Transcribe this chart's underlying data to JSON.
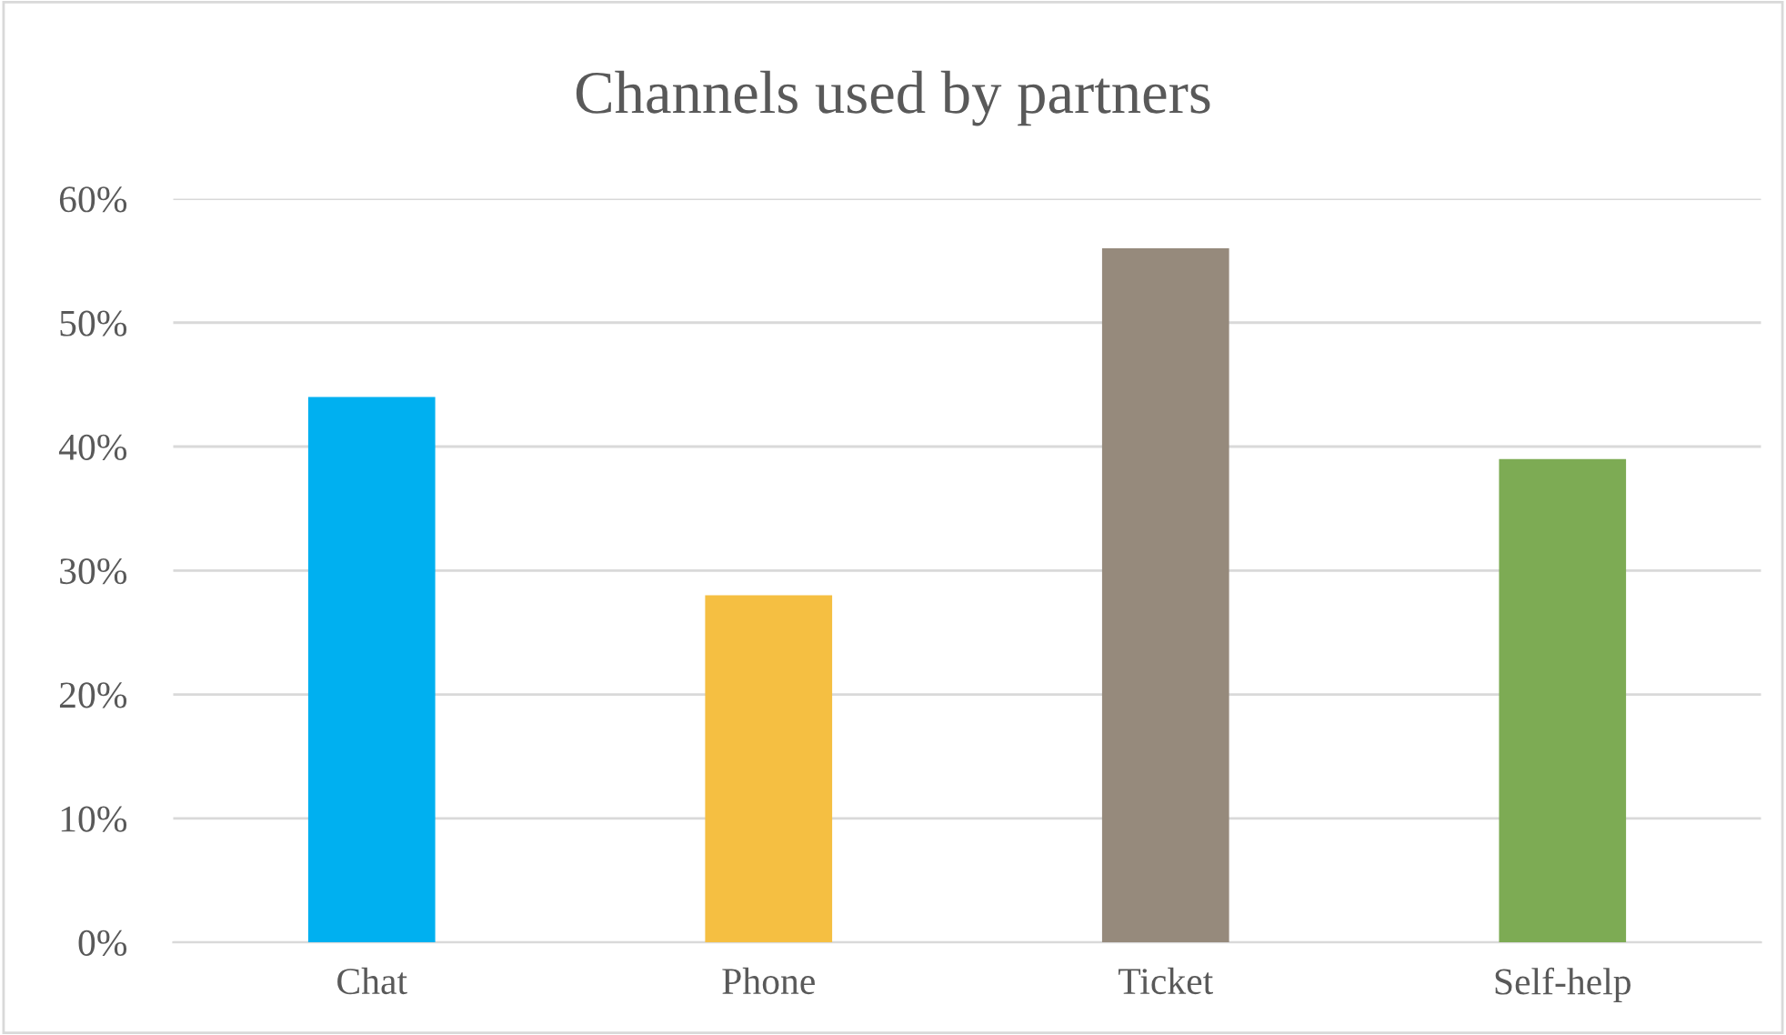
{
  "chart_data": {
    "type": "bar",
    "title": "Channels used by partners",
    "categories": [
      "Chat",
      "Phone",
      "Ticket",
      "Self-help"
    ],
    "values": [
      44,
      28,
      56,
      39
    ],
    "colors": [
      "#00b0f0",
      "#f5bf42",
      "#968a7c",
      "#7dab54"
    ],
    "ylim": [
      0,
      60
    ],
    "yticks": [
      {
        "value": 0,
        "label": "0%"
      },
      {
        "value": 10,
        "label": "10%"
      },
      {
        "value": 20,
        "label": "20%"
      },
      {
        "value": 30,
        "label": "30%"
      },
      {
        "value": 40,
        "label": "40%"
      },
      {
        "value": 50,
        "label": "50%"
      },
      {
        "value": 60,
        "label": "60%"
      }
    ],
    "grid": "y",
    "legend": false
  }
}
